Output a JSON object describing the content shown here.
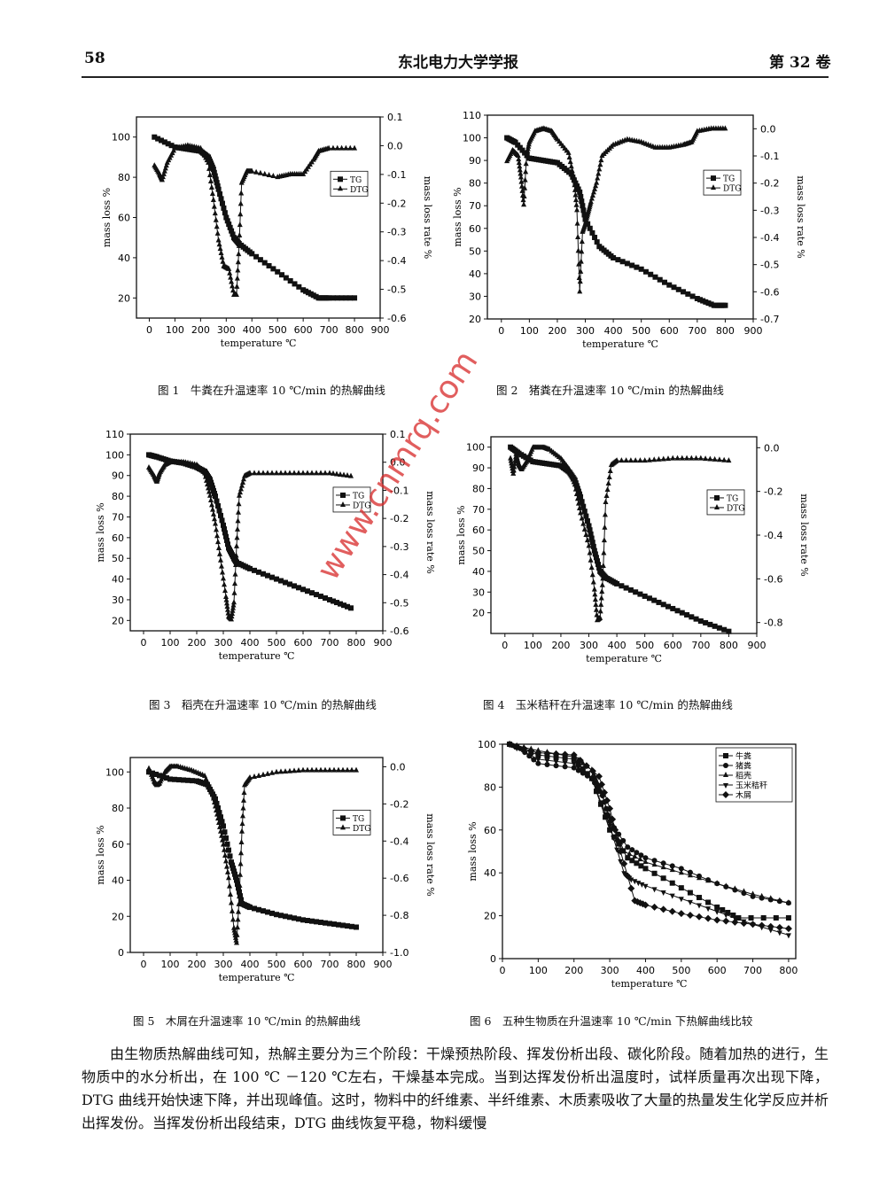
{
  "header": {
    "page_number": "58",
    "journal": "东北电力大学学报",
    "volume": "第 32 卷"
  },
  "watermark": "www.cnmrq.com",
  "figures": [
    {
      "caption": "图 1　牛粪在升温速率 10 ℃/min 的热解曲线"
    },
    {
      "caption": "图 2　猪粪在升温速率 10 ℃/min 的热解曲线"
    },
    {
      "caption": "图 3　稻壳在升温速率 10 ℃/min 的热解曲线"
    },
    {
      "caption": "图 4　玉米秸秆在升温速率 10 ℃/min 的热解曲线"
    },
    {
      "caption": "图 5　木屑在升温速率 10 ℃/min 的热解曲线"
    },
    {
      "caption": "图 6　五种生物质在升温速率 10 ℃/min 下热解曲线比较"
    }
  ],
  "chart_data": [
    {
      "type": "line",
      "title": "牛粪",
      "xlabel": "temperature ℃",
      "ylabel": "mass loss %",
      "y2label": "mass loss rate %",
      "xticks": [
        "0",
        "100",
        "200",
        "300",
        "400",
        "500",
        "600",
        "700",
        "800",
        "900"
      ],
      "yticks": [
        "20",
        "40",
        "60",
        "80",
        "100"
      ],
      "y2ticks": [
        "-0.6",
        "-0.5",
        "-0.4",
        "-0.3",
        "-0.2",
        "-0.1",
        "0.0",
        "0.1"
      ],
      "xlim": [
        -50,
        900
      ],
      "ylim": [
        10,
        110
      ],
      "y2lim": [
        -0.6,
        0.1
      ],
      "legend": [
        "TG",
        "DTG"
      ],
      "series": [
        {
          "name": "TG",
          "x": [
            20,
            100,
            150,
            200,
            230,
            250,
            270,
            300,
            330,
            350,
            400,
            500,
            600,
            660,
            700,
            800
          ],
          "y": [
            100,
            95,
            94,
            93,
            90,
            84,
            74,
            60,
            50,
            47,
            42,
            33,
            24,
            20,
            20,
            20
          ]
        },
        {
          "name": "DTG",
          "x": [
            20,
            40,
            50,
            70,
            100,
            150,
            200,
            230,
            250,
            270,
            290,
            310,
            330,
            340,
            350,
            360,
            380,
            400,
            500,
            550,
            600,
            640,
            660,
            700,
            800
          ],
          "y": [
            -0.07,
            -0.1,
            -0.12,
            -0.06,
            -0.01,
            0.0,
            -0.01,
            -0.06,
            -0.19,
            -0.33,
            -0.42,
            -0.43,
            -0.52,
            -0.52,
            -0.35,
            -0.13,
            -0.09,
            -0.09,
            -0.11,
            -0.1,
            -0.1,
            -0.05,
            -0.02,
            -0.01,
            -0.01
          ]
        }
      ]
    },
    {
      "type": "line",
      "title": "猪粪",
      "xlabel": "temperature ℃",
      "ylabel": "mass loss %",
      "y2label": "mass loss rate %",
      "xticks": [
        "0",
        "100",
        "200",
        "300",
        "400",
        "500",
        "600",
        "700",
        "800",
        "900"
      ],
      "yticks": [
        "20",
        "30",
        "40",
        "50",
        "60",
        "70",
        "80",
        "90",
        "100",
        "110"
      ],
      "y2ticks": [
        "-0.7",
        "-0.6",
        "-0.5",
        "-0.4",
        "-0.3",
        "-0.2",
        "-0.1",
        "0.0"
      ],
      "xlim": [
        -50,
        900
      ],
      "ylim": [
        20,
        110
      ],
      "y2lim": [
        -0.7,
        0.05
      ],
      "legend": [
        "TG",
        "DTG"
      ],
      "series": [
        {
          "name": "TG",
          "x": [
            20,
            50,
            100,
            150,
            200,
            250,
            280,
            300,
            350,
            400,
            500,
            600,
            700,
            760,
            800
          ],
          "y": [
            100,
            98,
            91,
            90,
            89,
            84,
            76,
            64,
            52,
            47,
            42,
            35,
            29,
            26,
            26
          ]
        },
        {
          "name": "DTG",
          "x": [
            20,
            40,
            60,
            70,
            80,
            90,
            100,
            120,
            150,
            180,
            200,
            240,
            260,
            270,
            280,
            290,
            300,
            310,
            320,
            340,
            360,
            400,
            450,
            500,
            550,
            600,
            650,
            680,
            700,
            750,
            800
          ],
          "y": [
            -0.12,
            -0.08,
            -0.1,
            -0.18,
            -0.28,
            -0.1,
            -0.05,
            -0.01,
            0.0,
            -0.01,
            -0.04,
            -0.09,
            -0.19,
            -0.3,
            -0.6,
            -0.38,
            -0.35,
            -0.31,
            -0.27,
            -0.2,
            -0.1,
            -0.06,
            -0.04,
            -0.05,
            -0.07,
            -0.07,
            -0.06,
            -0.05,
            -0.01,
            0.0,
            0.0
          ]
        }
      ]
    },
    {
      "type": "line",
      "title": "稻壳",
      "xlabel": "temperature ℃",
      "ylabel": "mass loss %",
      "y2label": "mass loss rate %",
      "xticks": [
        "0",
        "100",
        "200",
        "300",
        "400",
        "500",
        "600",
        "700",
        "800",
        "900"
      ],
      "yticks": [
        "20",
        "30",
        "40",
        "50",
        "60",
        "70",
        "80",
        "90",
        "100",
        "110"
      ],
      "y2ticks": [
        "-0.6",
        "-0.5",
        "-0.4",
        "-0.3",
        "-0.2",
        "-0.1",
        "0.0",
        "0.1"
      ],
      "xlim": [
        -50,
        900
      ],
      "ylim": [
        15,
        110
      ],
      "y2lim": [
        -0.6,
        0.1
      ],
      "legend": [
        "TG",
        "DTG"
      ],
      "series": [
        {
          "name": "TG",
          "x": [
            20,
            50,
            100,
            150,
            200,
            230,
            250,
            270,
            300,
            320,
            340,
            350,
            400,
            500,
            600,
            700,
            780
          ],
          "y": [
            100,
            99,
            97,
            96,
            94,
            92,
            88,
            80,
            66,
            55,
            50,
            48,
            45,
            40,
            35,
            30,
            26
          ]
        },
        {
          "name": "DTG",
          "x": [
            20,
            40,
            50,
            60,
            80,
            100,
            150,
            200,
            230,
            250,
            270,
            290,
            310,
            320,
            330,
            340,
            350,
            360,
            380,
            400,
            500,
            600,
            700,
            780
          ],
          "y": [
            -0.02,
            -0.05,
            -0.07,
            -0.04,
            -0.01,
            0.0,
            0.0,
            -0.01,
            -0.04,
            -0.12,
            -0.22,
            -0.35,
            -0.48,
            -0.55,
            -0.56,
            -0.5,
            -0.3,
            -0.12,
            -0.05,
            -0.04,
            -0.04,
            -0.04,
            -0.04,
            -0.05
          ]
        }
      ]
    },
    {
      "type": "line",
      "title": "玉米秸秆",
      "xlabel": "temperature ℃",
      "ylabel": "mass loss %",
      "y2label": "mass loss rate %",
      "xticks": [
        "0",
        "100",
        "200",
        "300",
        "400",
        "500",
        "600",
        "700",
        "800",
        "900"
      ],
      "yticks": [
        "20",
        "30",
        "40",
        "50",
        "60",
        "70",
        "80",
        "90",
        "100"
      ],
      "y2ticks": [
        "-0.8",
        "-0.6",
        "-0.4",
        "-0.2",
        "0.0"
      ],
      "xlim": [
        -50,
        900
      ],
      "ylim": [
        10,
        105
      ],
      "y2lim": [
        -0.85,
        0.05
      ],
      "legend": [
        "TG",
        "DTG"
      ],
      "series": [
        {
          "name": "TG",
          "x": [
            20,
            50,
            100,
            150,
            200,
            230,
            250,
            270,
            300,
            320,
            340,
            360,
            400,
            500,
            600,
            700,
            800
          ],
          "y": [
            100,
            97,
            93,
            92,
            91,
            88,
            84,
            76,
            62,
            50,
            40,
            37,
            34,
            28,
            22,
            16,
            11
          ]
        },
        {
          "name": "DTG",
          "x": [
            20,
            30,
            40,
            50,
            60,
            80,
            100,
            120,
            140,
            160,
            200,
            230,
            250,
            270,
            300,
            320,
            330,
            340,
            350,
            360,
            380,
            400,
            500,
            600,
            700,
            800
          ],
          "y": [
            -0.05,
            -0.12,
            -0.03,
            -0.08,
            -0.1,
            -0.06,
            0.0,
            0.0,
            0.0,
            -0.01,
            -0.05,
            -0.1,
            -0.17,
            -0.3,
            -0.45,
            -0.65,
            -0.79,
            -0.78,
            -0.6,
            -0.25,
            -0.08,
            -0.06,
            -0.06,
            -0.05,
            -0.05,
            -0.06
          ]
        }
      ]
    },
    {
      "type": "line",
      "title": "木屑",
      "xlabel": "temperature ℃",
      "ylabel": "mass loss %",
      "y2label": "mass loss rate %",
      "xticks": [
        "0",
        "100",
        "200",
        "300",
        "400",
        "500",
        "600",
        "700",
        "800",
        "900"
      ],
      "yticks": [
        "0",
        "20",
        "40",
        "60",
        "80",
        "100"
      ],
      "y2ticks": [
        "-1.0",
        "-0.8",
        "-0.6",
        "-0.4",
        "-0.2",
        "0.0"
      ],
      "xlim": [
        -50,
        900
      ],
      "ylim": [
        0,
        108
      ],
      "y2lim": [
        -1.0,
        0.05
      ],
      "legend": [
        "TG",
        "DTG"
      ],
      "series": [
        {
          "name": "TG",
          "x": [
            20,
            100,
            200,
            240,
            270,
            300,
            330,
            350,
            370,
            400,
            500,
            600,
            700,
            800
          ],
          "y": [
            100,
            96,
            95,
            93,
            85,
            70,
            50,
            40,
            27,
            25,
            21,
            18,
            16,
            14
          ]
        },
        {
          "name": "DTG",
          "x": [
            20,
            40,
            50,
            60,
            80,
            100,
            130,
            180,
            230,
            260,
            280,
            300,
            320,
            340,
            350,
            360,
            370,
            380,
            400,
            500,
            600,
            700,
            800
          ],
          "y": [
            -0.01,
            -0.08,
            -0.1,
            -0.09,
            -0.03,
            0.0,
            0.0,
            -0.02,
            -0.05,
            -0.15,
            -0.28,
            -0.42,
            -0.6,
            -0.87,
            -0.95,
            -0.7,
            -0.35,
            -0.1,
            -0.06,
            -0.03,
            -0.02,
            -0.02,
            -0.02
          ]
        }
      ]
    },
    {
      "type": "line",
      "title": "比较",
      "xlabel": "temperature ℃",
      "ylabel": "mass loss %",
      "xticks": [
        "0",
        "100",
        "200",
        "300",
        "400",
        "500",
        "600",
        "700",
        "800"
      ],
      "yticks": [
        "0",
        "20",
        "40",
        "60",
        "80",
        "100"
      ],
      "xlim": [
        0,
        820
      ],
      "ylim": [
        0,
        100
      ],
      "legend": [
        "牛粪",
        "猪粪",
        "稻壳",
        "玉米秸秆",
        "木屑"
      ],
      "series": [
        {
          "name": "牛粪",
          "x": [
            20,
            100,
            200,
            250,
            300,
            350,
            400,
            500,
            600,
            660,
            800
          ],
          "y": [
            100,
            95,
            93,
            84,
            60,
            47,
            42,
            33,
            24,
            19,
            19
          ]
        },
        {
          "name": "猪粪",
          "x": [
            20,
            50,
            100,
            200,
            250,
            280,
            300,
            350,
            400,
            500,
            600,
            700,
            800
          ],
          "y": [
            100,
            98,
            91,
            89,
            84,
            76,
            64,
            52,
            47,
            42,
            35,
            29,
            26
          ]
        },
        {
          "name": "稻壳",
          "x": [
            20,
            100,
            200,
            250,
            270,
            300,
            340,
            400,
            500,
            600,
            700,
            800
          ],
          "y": [
            100,
            97,
            94,
            88,
            80,
            66,
            50,
            45,
            40,
            35,
            30,
            26
          ]
        },
        {
          "name": "玉米秸秆",
          "x": [
            20,
            100,
            200,
            250,
            300,
            340,
            360,
            400,
            500,
            600,
            700,
            800
          ],
          "y": [
            100,
            93,
            91,
            84,
            62,
            40,
            37,
            34,
            28,
            22,
            16,
            11
          ]
        },
        {
          "name": "木屑",
          "x": [
            20,
            100,
            200,
            270,
            300,
            330,
            370,
            400,
            500,
            600,
            700,
            800
          ],
          "y": [
            100,
            96,
            95,
            85,
            70,
            50,
            27,
            25,
            21,
            18,
            16,
            14
          ]
        }
      ]
    }
  ],
  "body_text": [
    "由生物质热解曲线可知，热解主要分为三个阶段：干燥预热阶段、挥发份析出段、碳化阶段。随着加热的进行，生物质中的水分析出，在 100 ℃ －120 ℃左右，干燥基本完成。当到达挥发份析出温度时，试样质量再次出现下降，DTG 曲线开始快速下降，并出现峰值。这时，物料中的纤维素、半纤维素、木质素吸收了大量的热量发生化学反应并析出挥发份。当挥发份析出段结束，DTG 曲线恢复平稳，物料缓慢"
  ]
}
